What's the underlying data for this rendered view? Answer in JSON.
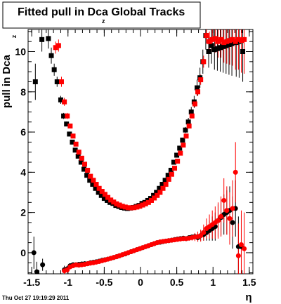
{
  "chart_data": {
    "type": "scatter",
    "title": "Fitted pull in Dca",
    "title_subscript": "z",
    "title_suffix": " Global Tracks",
    "ylabel": "pull in Dca",
    "ylabel_subscript": "z",
    "xlabel": "η",
    "timestamp": "Thu Oct 27 19:19:29 2011",
    "xlim": [
      -1.55,
      1.55
    ],
    "ylim": [
      -1.05,
      11.1
    ],
    "xticks": [
      -1.5,
      -1,
      -0.5,
      0,
      0.5,
      1,
      1.5
    ],
    "xtick_labels": [
      "-1.5",
      "-1",
      "-0.5",
      "0",
      "0.5",
      "1",
      "1.5"
    ],
    "yticks": [
      0,
      2,
      4,
      6,
      8,
      10
    ],
    "ytick_labels": [
      "0",
      "2",
      "4",
      "6",
      "8",
      "10"
    ],
    "grid": false,
    "colors": {
      "series_a": "#000000",
      "series_b": "#ff0000"
    },
    "series": [
      {
        "marker": "square",
        "color": "#000000",
        "x": [
          -1.45,
          -1.36,
          -1.27,
          -1.23,
          -1.19,
          -1.15,
          -1.1,
          -1.06,
          -1.02,
          -0.98,
          -0.94,
          -0.9,
          -0.86,
          -0.82,
          -0.78,
          -0.74,
          -0.7,
          -0.66,
          -0.62,
          -0.58,
          -0.54,
          -0.5,
          -0.46,
          -0.42,
          -0.38,
          -0.34,
          -0.3,
          -0.26,
          -0.22,
          -0.18,
          -0.14,
          -0.1,
          -0.06,
          -0.02,
          0.02,
          0.06,
          0.1,
          0.14,
          0.18,
          0.22,
          0.26,
          0.3,
          0.34,
          0.38,
          0.42,
          0.46,
          0.5,
          0.54,
          0.58,
          0.62,
          0.66,
          0.7,
          0.74,
          0.78,
          0.82,
          0.86,
          0.9,
          0.94,
          0.98,
          1.02,
          1.06,
          1.1,
          1.14,
          1.18,
          1.22,
          1.26,
          1.32,
          1.36,
          1.41
        ],
        "y": [
          8.5,
          10.6,
          10.65,
          9.8,
          9.1,
          8.5,
          7.6,
          6.8,
          6.4,
          5.9,
          5.5,
          5.1,
          4.8,
          4.5,
          4.15,
          3.85,
          3.6,
          3.4,
          3.2,
          3.0,
          2.85,
          2.7,
          2.6,
          2.5,
          2.45,
          2.35,
          2.3,
          2.25,
          2.22,
          2.2,
          2.22,
          2.25,
          2.3,
          2.35,
          2.45,
          2.5,
          2.6,
          2.7,
          2.85,
          3.0,
          3.2,
          3.4,
          3.6,
          3.85,
          4.1,
          4.5,
          4.85,
          5.2,
          5.6,
          6.1,
          6.5,
          7.0,
          7.5,
          8.2,
          8.7,
          9.5,
          10.8,
          10.0,
          10.3,
          10.1,
          10.15,
          10.2,
          10.25,
          10.3,
          10.35,
          10.4,
          10.45,
          10.5,
          10.0
        ],
        "yerr": [
          0.9,
          0.6,
          0.5,
          0.4,
          0.3,
          0.25,
          0.2,
          0.15,
          0.12,
          0.1,
          0.1,
          0.08,
          0.08,
          0.08,
          0.08,
          0.08,
          0.08,
          0.08,
          0.08,
          0.08,
          0.08,
          0.08,
          0.08,
          0.08,
          0.08,
          0.08,
          0.08,
          0.08,
          0.08,
          0.08,
          0.08,
          0.08,
          0.08,
          0.08,
          0.08,
          0.08,
          0.08,
          0.08,
          0.08,
          0.08,
          0.08,
          0.08,
          0.08,
          0.08,
          0.08,
          0.08,
          0.08,
          0.1,
          0.12,
          0.15,
          0.2,
          0.25,
          0.3,
          0.4,
          0.5,
          0.6,
          0.7,
          0.8,
          0.9,
          1.0,
          1.1,
          1.2,
          1.3,
          1.4,
          1.5,
          1.6,
          1.7,
          1.8,
          1.5
        ]
      },
      {
        "marker": "square",
        "color": "#ff0000",
        "x": [
          -1.17,
          -1.13,
          -1.09,
          -1.05,
          -1.01,
          -0.97,
          -0.93,
          -0.89,
          -0.85,
          -0.81,
          -0.77,
          -0.73,
          -0.69,
          -0.65,
          -0.61,
          -0.57,
          -0.53,
          -0.49,
          -0.45,
          -0.41,
          -0.37,
          -0.33,
          -0.29,
          -0.25,
          -0.21,
          -0.17,
          -0.13,
          -0.09,
          -0.05,
          -0.01,
          0.03,
          0.07,
          0.11,
          0.15,
          0.19,
          0.23,
          0.27,
          0.31,
          0.35,
          0.39,
          0.43,
          0.47,
          0.51,
          0.55,
          0.59,
          0.63,
          0.67,
          0.71,
          0.75,
          0.79,
          0.83,
          0.87,
          0.91,
          0.95,
          0.99,
          1.03,
          1.07,
          1.11,
          1.15,
          1.19,
          1.23,
          1.27,
          1.31,
          1.35,
          1.39,
          1.43
        ],
        "y": [
          10.2,
          10.3,
          8.5,
          7.5,
          6.8,
          6.3,
          5.8,
          5.4,
          5.0,
          4.7,
          4.4,
          4.1,
          3.8,
          3.6,
          3.4,
          3.2,
          3.05,
          2.9,
          2.75,
          2.62,
          2.52,
          2.43,
          2.37,
          2.31,
          2.27,
          2.24,
          2.23,
          2.24,
          2.27,
          2.31,
          2.37,
          2.43,
          2.5,
          2.6,
          2.72,
          2.85,
          3.0,
          3.2,
          3.4,
          3.65,
          3.9,
          4.2,
          4.55,
          4.95,
          5.35,
          5.8,
          6.3,
          6.8,
          7.4,
          8.0,
          8.6,
          9.5,
          10.8,
          10.5,
          10.6,
          10.65,
          10.5,
          10.6,
          10.45,
          10.5,
          10.55,
          10.6,
          10.5,
          10.6,
          10.55,
          10.6
        ],
        "yerr": [
          0.3,
          0.3,
          0.25,
          0.2,
          0.15,
          0.12,
          0.1,
          0.1,
          0.08,
          0.08,
          0.08,
          0.08,
          0.08,
          0.08,
          0.08,
          0.08,
          0.08,
          0.08,
          0.08,
          0.08,
          0.08,
          0.08,
          0.08,
          0.08,
          0.08,
          0.08,
          0.08,
          0.08,
          0.08,
          0.08,
          0.08,
          0.08,
          0.08,
          0.08,
          0.08,
          0.08,
          0.08,
          0.08,
          0.08,
          0.08,
          0.08,
          0.08,
          0.08,
          0.08,
          0.08,
          0.08,
          0.1,
          0.12,
          0.15,
          0.2,
          0.25,
          0.3,
          0.4,
          0.5,
          0.6,
          0.7,
          0.8,
          0.9,
          1.0,
          1.1,
          1.2,
          1.3,
          1.4,
          1.5,
          1.6,
          1.7
        ]
      },
      {
        "marker": "circle",
        "color": "#000000",
        "x": [
          -1.47,
          -1.43,
          -1.35,
          -1.05,
          -1.01,
          -0.97,
          -0.93,
          -0.89,
          -0.85,
          -0.81,
          -0.77,
          -0.73,
          -0.69,
          -0.65,
          -0.61,
          -0.57,
          -0.53,
          -0.49,
          -0.45,
          -0.41,
          -0.37,
          -0.33,
          -0.29,
          -0.25,
          -0.21,
          -0.17,
          -0.13,
          -0.09,
          -0.05,
          -0.01,
          0.03,
          0.07,
          0.11,
          0.15,
          0.19,
          0.23,
          0.27,
          0.31,
          0.35,
          0.39,
          0.43,
          0.47,
          0.51,
          0.55,
          0.59,
          0.63,
          0.67,
          0.71,
          0.75,
          0.79,
          0.83,
          0.87,
          0.91,
          0.95,
          0.99,
          1.03,
          1.07,
          1.11,
          1.15,
          1.19,
          1.23,
          1.27,
          1.31,
          1.35,
          1.39
        ],
        "y": [
          0.0,
          -0.95,
          -0.6,
          -0.85,
          -0.8,
          -0.65,
          -0.6,
          -0.6,
          -0.58,
          -0.56,
          -0.55,
          -0.55,
          -0.5,
          -0.48,
          -0.45,
          -0.42,
          -0.38,
          -0.35,
          -0.32,
          -0.28,
          -0.24,
          -0.2,
          -0.15,
          -0.1,
          -0.06,
          0.0,
          0.05,
          0.1,
          0.15,
          0.2,
          0.25,
          0.3,
          0.35,
          0.4,
          0.45,
          0.5,
          0.52,
          0.55,
          0.58,
          0.6,
          0.62,
          0.65,
          0.68,
          0.7,
          0.72,
          0.7,
          0.75,
          0.78,
          0.8,
          0.75,
          0.85,
          0.9,
          1.0,
          1.1,
          1.2,
          1.3,
          1.6,
          1.75,
          1.9,
          2.0,
          2.1,
          1.5,
          2.2,
          0.3,
          0.3
        ],
        "yerr": [
          0.8,
          0.5,
          0.3,
          0.2,
          0.15,
          0.12,
          0.1,
          0.08,
          0.08,
          0.08,
          0.08,
          0.08,
          0.08,
          0.08,
          0.08,
          0.08,
          0.08,
          0.08,
          0.08,
          0.08,
          0.08,
          0.08,
          0.08,
          0.08,
          0.08,
          0.08,
          0.08,
          0.08,
          0.08,
          0.08,
          0.08,
          0.08,
          0.08,
          0.08,
          0.08,
          0.08,
          0.08,
          0.08,
          0.08,
          0.08,
          0.08,
          0.08,
          0.08,
          0.08,
          0.08,
          0.08,
          0.1,
          0.12,
          0.15,
          0.2,
          0.25,
          0.3,
          0.4,
          0.5,
          0.6,
          0.7,
          0.8,
          0.9,
          1.0,
          1.1,
          1.2,
          1.3,
          1.4,
          1.5,
          1.6
        ]
      },
      {
        "marker": "circle",
        "color": "#ff0000",
        "x": [
          -1.05,
          -1.01,
          -0.97,
          -0.93,
          -0.89,
          -0.85,
          -0.81,
          -0.77,
          -0.73,
          -0.69,
          -0.65,
          -0.61,
          -0.57,
          -0.53,
          -0.49,
          -0.45,
          -0.41,
          -0.37,
          -0.33,
          -0.29,
          -0.25,
          -0.21,
          -0.17,
          -0.13,
          -0.09,
          -0.05,
          -0.01,
          0.03,
          0.07,
          0.11,
          0.15,
          0.19,
          0.23,
          0.27,
          0.31,
          0.35,
          0.39,
          0.43,
          0.47,
          0.51,
          0.55,
          0.59,
          0.63,
          0.67,
          0.71,
          0.75,
          0.79,
          0.83,
          0.87,
          0.91,
          0.95,
          0.99,
          1.03,
          1.07,
          1.11,
          1.15,
          1.19,
          1.23,
          1.27,
          1.31,
          1.35,
          1.39,
          1.43
        ],
        "y": [
          -0.9,
          -0.85,
          -0.7,
          -0.65,
          -0.6,
          -0.62,
          -0.6,
          -0.58,
          -0.55,
          -0.52,
          -0.5,
          -0.47,
          -0.44,
          -0.4,
          -0.36,
          -0.32,
          -0.28,
          -0.24,
          -0.2,
          -0.15,
          -0.1,
          -0.05,
          0.0,
          0.05,
          0.1,
          0.15,
          0.2,
          0.25,
          0.3,
          0.35,
          0.4,
          0.45,
          0.5,
          0.54,
          0.56,
          0.58,
          0.6,
          0.62,
          0.64,
          0.66,
          0.68,
          0.7,
          0.7,
          0.72,
          0.75,
          0.78,
          0.8,
          0.85,
          1.0,
          1.2,
          1.3,
          1.4,
          1.5,
          1.6,
          1.8,
          2.6,
          2.1,
          1.7,
          2.2,
          4.0,
          -0.15,
          0.4,
          0.2
        ],
        "yerr": [
          0.2,
          0.15,
          0.12,
          0.1,
          0.08,
          0.08,
          0.08,
          0.08,
          0.08,
          0.08,
          0.08,
          0.08,
          0.08,
          0.08,
          0.08,
          0.08,
          0.08,
          0.08,
          0.08,
          0.08,
          0.08,
          0.08,
          0.08,
          0.08,
          0.08,
          0.08,
          0.08,
          0.08,
          0.08,
          0.08,
          0.08,
          0.08,
          0.08,
          0.08,
          0.08,
          0.08,
          0.08,
          0.08,
          0.08,
          0.08,
          0.08,
          0.08,
          0.1,
          0.12,
          0.15,
          0.2,
          0.25,
          0.3,
          0.4,
          0.5,
          0.6,
          0.7,
          0.8,
          0.9,
          1.0,
          1.1,
          1.2,
          1.3,
          1.4,
          1.5,
          1.6,
          1.7,
          1.8
        ]
      }
    ]
  }
}
